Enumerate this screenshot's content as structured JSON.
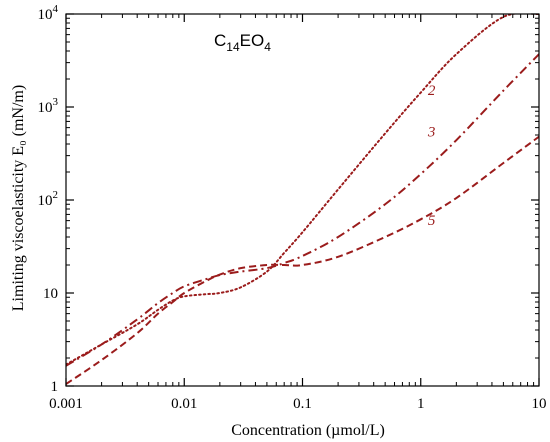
{
  "chart_data": {
    "type": "line",
    "title_base": "C",
    "title_sub1": "14",
    "title_mid": "EO",
    "title_sub2": "4",
    "xlabel": "Concentration (µmol/L)",
    "ylabel": "Limiting viscoelasticity E₀ (mN/m)",
    "x_scale": "log",
    "y_scale": "log",
    "xlim": [
      0.001,
      10
    ],
    "ylim": [
      1,
      10000
    ],
    "x_ticks": [
      {
        "value": 0.001,
        "label": "0.001"
      },
      {
        "value": 0.01,
        "label": "0.01"
      },
      {
        "value": 0.1,
        "label": "0.1"
      },
      {
        "value": 1,
        "label": "1"
      },
      {
        "value": 10,
        "label": "10"
      }
    ],
    "y_ticks": [
      {
        "value": 1,
        "label": "1"
      },
      {
        "value": 10,
        "label": "10"
      },
      {
        "value": 100,
        "label": "10",
        "exp": "2"
      },
      {
        "value": 1000,
        "label": "10",
        "exp": "3"
      },
      {
        "value": 10000,
        "label": "10",
        "exp": "4"
      }
    ],
    "grid": false,
    "legend": "inline labels",
    "series_color": "#9b1c1c",
    "series": [
      {
        "label": "2",
        "dash": "dotted",
        "label_at": [
          1.15,
          1350
        ],
        "x": [
          0.001,
          0.002,
          0.004,
          0.006,
          0.008,
          0.01,
          0.015,
          0.02,
          0.03,
          0.05,
          0.07,
          0.1,
          0.2,
          0.5,
          1,
          2,
          5,
          10
        ],
        "y": [
          1.7,
          2.8,
          4.6,
          6.6,
          8.3,
          9.2,
          9.7,
          10.0,
          11.5,
          17,
          27,
          45,
          130,
          520,
          1430,
          3700,
          9300,
          10000
        ]
      },
      {
        "label": "3",
        "dash": "dashdot",
        "label_at": [
          1.15,
          480
        ],
        "x": [
          0.001,
          0.002,
          0.004,
          0.006,
          0.008,
          0.01,
          0.015,
          0.02,
          0.03,
          0.05,
          0.07,
          0.1,
          0.2,
          0.5,
          1,
          2,
          5,
          10
        ],
        "y": [
          1.65,
          2.8,
          5.2,
          7.8,
          10.0,
          11.8,
          14.0,
          15.6,
          17.0,
          18.5,
          21,
          25,
          40,
          90,
          190,
          440,
          1500,
          3700
        ]
      },
      {
        "label": "5",
        "dash": "dashed",
        "label_at": [
          1.15,
          54
        ],
        "x": [
          0.001,
          0.002,
          0.004,
          0.006,
          0.008,
          0.01,
          0.015,
          0.02,
          0.03,
          0.05,
          0.07,
          0.1,
          0.2,
          0.5,
          1,
          2,
          5,
          10
        ],
        "y": [
          1.05,
          1.9,
          3.7,
          6.0,
          8.0,
          10.0,
          13.3,
          15.8,
          18.5,
          20.0,
          20.0,
          20.0,
          24.5,
          40,
          62,
          105,
          250,
          480
        ]
      }
    ]
  }
}
